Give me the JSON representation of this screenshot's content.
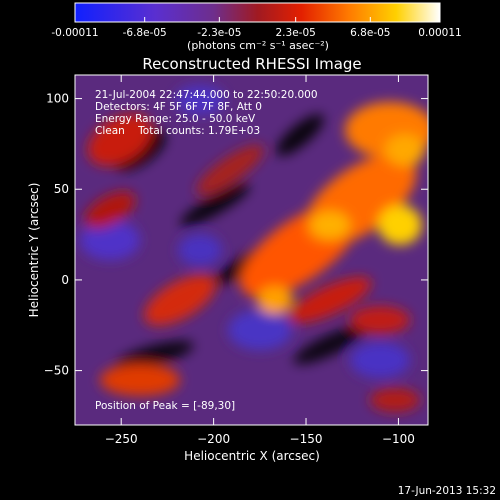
{
  "colorbar": {
    "tick_labels": [
      "-0.00011",
      "-6.8e-05",
      "-2.3e-05",
      "2.3e-05",
      "6.8e-05",
      "0.00011"
    ],
    "tick_values": [
      -0.00011,
      -6.8e-05,
      -2.3e-05,
      2.3e-05,
      6.8e-05,
      0.00011
    ],
    "range": [
      -0.00011,
      0.00011
    ],
    "unit_label": "(photons cm⁻² s⁻¹ asec⁻²)",
    "stops": [
      "#1020ff",
      "#6a2bd0",
      "#7a2f8a",
      "#a0202a",
      "#e32000",
      "#ff7a00",
      "#ffd000",
      "#ffffff"
    ]
  },
  "footer": {
    "timestamp": "17-Jun-2013 15:32"
  },
  "chart_data": {
    "type": "heatmap",
    "title": "Reconstructed RHESSI Image",
    "xlabel": "Heliocentric X (arcsec)",
    "ylabel": "Heliocentric Y (arcsec)",
    "xlim": [
      -275,
      -84
    ],
    "ylim": [
      -80,
      113
    ],
    "x_ticks": [
      -250,
      -200,
      -150,
      -100
    ],
    "y_ticks": [
      -50,
      0,
      50,
      100
    ],
    "x_tick_labels": [
      "−250",
      "−200",
      "−150",
      "−100"
    ],
    "y_tick_labels": [
      "−50",
      "0",
      "50",
      "100"
    ],
    "annotations": [
      "21-Jul-2004 22:47:44.000 to 22:50:20.000",
      "Detectors: 4F 5F 6F 7F 8F, Att 0",
      "Energy Range: 25.0 - 50.0 keV",
      "Clean    Total counts: 1.79E+03"
    ],
    "peak_label": "Position of Peak = [-89,30]",
    "peak_position": [
      -89,
      30
    ]
  }
}
